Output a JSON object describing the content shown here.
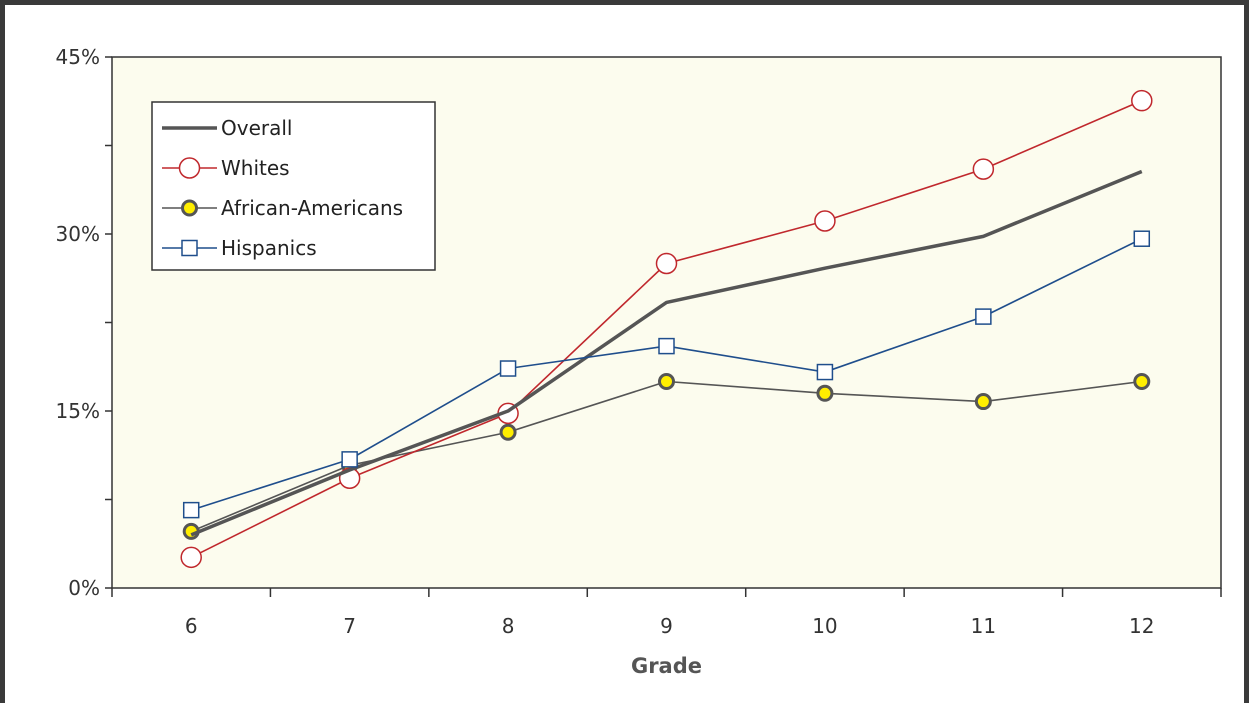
{
  "chart_data": {
    "type": "line",
    "title": "",
    "xlabel": "Grade",
    "ylabel": "",
    "categories": [
      "6",
      "7",
      "8",
      "9",
      "10",
      "11",
      "12"
    ],
    "ylim": [
      0,
      45
    ],
    "yticks": [
      "0%",
      "15%",
      "30%",
      "45%"
    ],
    "grid": false,
    "legend_position": "top-left",
    "plot_background": "#fcfcee",
    "series": [
      {
        "name": "Overall",
        "color": "#555555",
        "marker": "none",
        "values": [
          4.5,
          10.0,
          15.0,
          24.2,
          27.1,
          29.8,
          35.3
        ]
      },
      {
        "name": "Whites",
        "color": "#c0282d",
        "marker": "open-circle",
        "values": [
          2.6,
          9.3,
          14.8,
          27.5,
          31.1,
          35.5,
          41.3
        ]
      },
      {
        "name": "African-Americans",
        "color": "#555555",
        "marker": "yellow-circle",
        "values": [
          4.8,
          10.4,
          13.2,
          17.5,
          16.5,
          15.8,
          17.5
        ]
      },
      {
        "name": "Hispanics",
        "color": "#1f4e8c",
        "marker": "open-square",
        "values": [
          6.6,
          10.9,
          18.6,
          20.5,
          18.3,
          23.0,
          29.6
        ]
      }
    ]
  }
}
